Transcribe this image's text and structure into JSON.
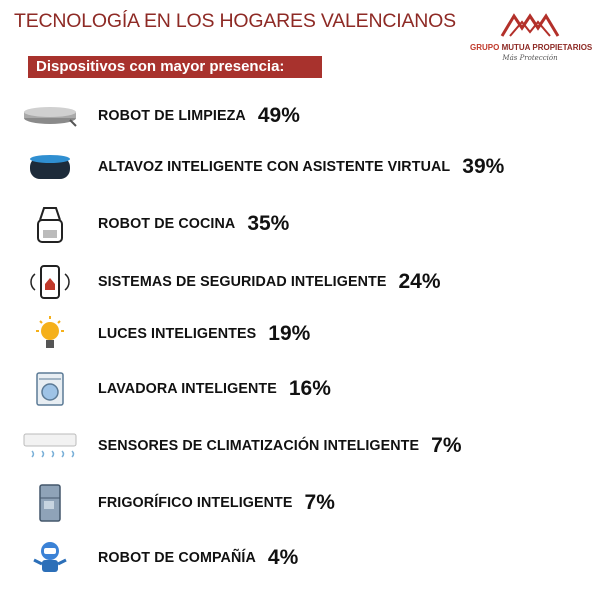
{
  "header": {
    "title": "TECNOLOGÍA EN LOS HOGARES VALENCIANOS",
    "subtitle": "Dispositivos con mayor presencia:"
  },
  "logo": {
    "brand_prefix": "GRUPO",
    "brand": "MUTUA PROPIETARIOS",
    "tagline": "Más Protección"
  },
  "items": [
    {
      "label": "ROBOT DE LIMPIEZA",
      "value": "49%"
    },
    {
      "label": "ALTAVOZ INTELIGENTE CON ASISTENTE VIRTUAL",
      "value": "39%"
    },
    {
      "label": "ROBOT DE COCINA",
      "value": "35%"
    },
    {
      "label": "SISTEMAS DE SEGURIDAD INTELIGENTE",
      "value": "24%"
    },
    {
      "label": "LUCES INTELIGENTES",
      "value": "19%"
    },
    {
      "label": "LAVADORA INTELIGENTE",
      "value": "16%"
    },
    {
      "label": "SENSORES DE CLIMATIZACIÓN INTELIGENTE",
      "value": "7%"
    },
    {
      "label": "FRIGORÍFICO INTELIGENTE",
      "value": "7%"
    },
    {
      "label": "ROBOT DE COMPAÑÍA",
      "value": "4%"
    }
  ]
}
